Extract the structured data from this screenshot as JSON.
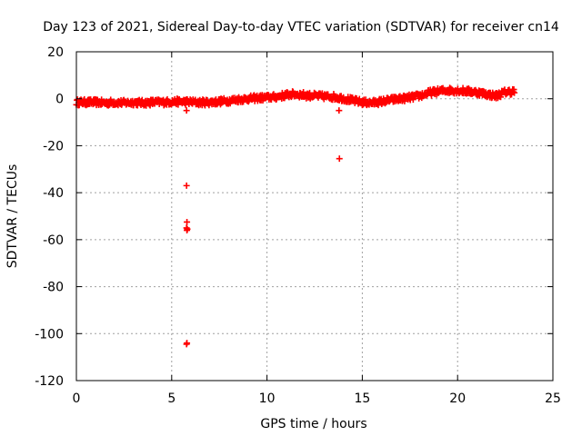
{
  "chart_data": {
    "type": "scatter",
    "title": "Day 123 of 2021, Sidereal Day-to-day VTEC variation (SDTVAR) for receiver cn14",
    "xlabel": "GPS time / hours",
    "ylabel": "SDTVAR / TECUs",
    "xlim": [
      0,
      25
    ],
    "ylim": [
      -120,
      20
    ],
    "x_ticks": [
      0,
      5,
      10,
      15,
      20,
      25
    ],
    "y_ticks": [
      20,
      0,
      -20,
      -40,
      -60,
      -80,
      -100,
      -120
    ],
    "x_tick_labels": [
      "0",
      "5",
      "10",
      "15",
      "20",
      "25"
    ],
    "y_tick_labels": [
      "20",
      "0",
      "-20",
      "-40",
      "-60",
      "-80",
      "-100",
      "-120"
    ],
    "grid": true,
    "marker": "+",
    "color": "#ff0000",
    "series": [
      {
        "name": "SDTVAR",
        "trend": {
          "x": [
            0.0,
            0.5,
            1.0,
            1.5,
            2.0,
            2.5,
            3.0,
            3.5,
            4.0,
            4.5,
            5.0,
            5.5,
            6.0,
            6.5,
            7.0,
            7.5,
            8.0,
            8.5,
            9.0,
            9.5,
            10.0,
            10.5,
            11.0,
            11.5,
            12.0,
            12.5,
            13.0,
            13.5,
            14.0,
            14.5,
            15.0,
            15.5,
            16.0,
            16.5,
            17.0,
            17.5,
            18.0,
            18.5,
            19.0,
            19.5,
            20.0,
            20.5,
            21.0,
            21.5,
            22.0,
            22.5,
            23.0
          ],
          "y": [
            -1.5,
            -1.5,
            -1.5,
            -1.8,
            -1.5,
            -1.8,
            -1.5,
            -1.8,
            -1.5,
            -1.5,
            -1.3,
            -1.2,
            -1.4,
            -1.6,
            -1.5,
            -1.2,
            -0.8,
            -0.3,
            0.0,
            0.3,
            0.5,
            0.8,
            1.6,
            2.0,
            1.5,
            1.2,
            1.0,
            0.8,
            0.2,
            -0.8,
            -1.5,
            -1.8,
            -1.2,
            -0.5,
            0.0,
            0.5,
            1.2,
            2.5,
            3.2,
            3.6,
            3.5,
            3.2,
            2.8,
            2.0,
            1.2,
            2.8,
            3.2
          ],
          "spread": 1.3,
          "point_spacing_hours": 0.03
        },
        "outliers": {
          "x": [
            5.78,
            5.78,
            5.8,
            5.78,
            5.82,
            5.8,
            5.8,
            5.78,
            13.78,
            13.8
          ],
          "y": [
            -5,
            -37,
            -52.5,
            -55,
            -55.5,
            -56,
            -104,
            -104.5,
            -5,
            -25.5
          ]
        }
      }
    ]
  }
}
